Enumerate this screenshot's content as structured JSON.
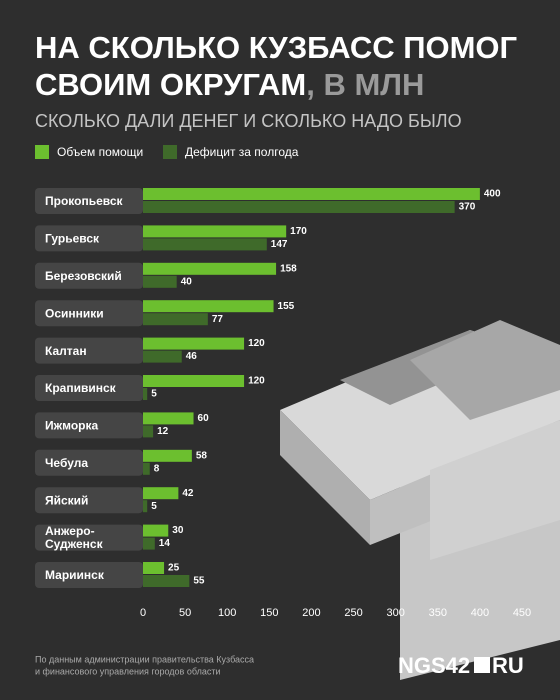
{
  "chart_data": {
    "type": "bar",
    "title": "НА СКОЛЬКО КУЗБАСС ПОМОГ",
    "title_line2": "СВОИМ ОКРУГАМ",
    "title_suffix": ", В МЛН",
    "subtitle": "СКОЛЬКО ДАЛИ ДЕНЕГ И СКОЛЬКО НАДО БЫЛО",
    "orientation": "horizontal",
    "categories": [
      "Прокопьевск",
      "Гурьевск",
      "Березовский",
      "Осинники",
      "Калтан",
      "Крапивинск",
      "Ижморка",
      "Чебула",
      "Яйский",
      "Анжеро-\nСудженск",
      "Мариинск"
    ],
    "series": [
      {
        "name": "Объем помощи",
        "color": "#6cbf2f",
        "values": [
          400,
          170,
          158,
          155,
          120,
          120,
          60,
          58,
          42,
          30,
          25
        ]
      },
      {
        "name": "Дефицит за полгода",
        "color": "#3f6a2a",
        "values": [
          370,
          147,
          40,
          77,
          46,
          5,
          12,
          8,
          5,
          14,
          55
        ]
      }
    ],
    "xlim": [
      0,
      450
    ],
    "xticks": [
      0,
      50,
      100,
      150,
      200,
      250,
      300,
      350,
      400,
      450
    ],
    "source": [
      "По данным администрации правительства Кузбасса",
      "и финансового управления городов области"
    ],
    "logo": "NGS42",
    "logo_suffix": "RU"
  }
}
